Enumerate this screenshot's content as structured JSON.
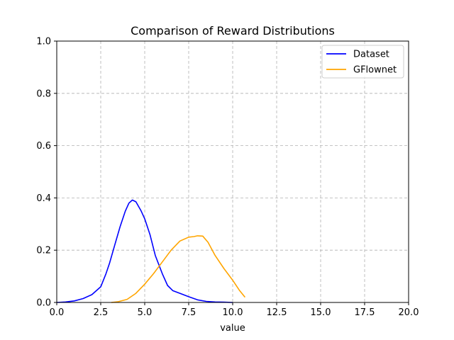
{
  "chart_data": {
    "type": "line",
    "title": "Comparison of Reward Distributions",
    "xlabel": "value",
    "ylabel": "",
    "xlim": [
      0,
      20
    ],
    "ylim": [
      0,
      1.0
    ],
    "xticks": [
      "0.0",
      "2.5",
      "5.0",
      "7.5",
      "10.0",
      "12.5",
      "15.0",
      "17.5",
      "20.0"
    ],
    "yticks": [
      "0.0",
      "0.2",
      "0.4",
      "0.6",
      "0.8",
      "1.0"
    ],
    "grid": true,
    "legend_position": "top-right",
    "series": [
      {
        "name": "Dataset",
        "color": "#0000ff",
        "x": [
          0.0,
          0.5,
          1.0,
          1.5,
          2.0,
          2.5,
          2.8,
          3.0,
          3.3,
          3.6,
          3.9,
          4.1,
          4.3,
          4.5,
          4.8,
          5.0,
          5.3,
          5.6,
          6.0,
          6.3,
          6.6,
          7.0,
          7.5,
          8.0,
          8.5,
          9.0,
          9.5,
          10.0
        ],
        "y": [
          0.0,
          0.002,
          0.006,
          0.015,
          0.03,
          0.06,
          0.11,
          0.15,
          0.22,
          0.29,
          0.35,
          0.38,
          0.392,
          0.385,
          0.35,
          0.32,
          0.26,
          0.18,
          0.11,
          0.065,
          0.045,
          0.035,
          0.022,
          0.01,
          0.004,
          0.002,
          0.001,
          0.0
        ]
      },
      {
        "name": "GFlownet",
        "color": "#ffa500",
        "x": [
          3.1,
          3.5,
          4.0,
          4.5,
          5.0,
          5.5,
          6.0,
          6.5,
          7.0,
          7.5,
          7.8,
          8.0,
          8.3,
          8.6,
          9.0,
          9.5,
          10.0,
          10.4,
          10.7
        ],
        "y": [
          0.0,
          0.003,
          0.012,
          0.035,
          0.07,
          0.11,
          0.155,
          0.2,
          0.235,
          0.25,
          0.252,
          0.255,
          0.254,
          0.23,
          0.18,
          0.13,
          0.085,
          0.045,
          0.02
        ]
      }
    ]
  }
}
